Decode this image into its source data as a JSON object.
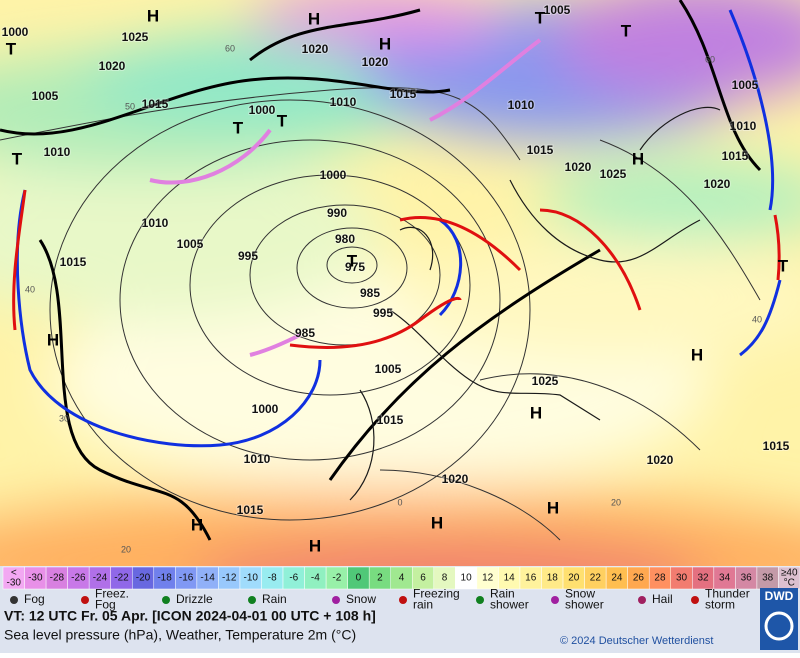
{
  "map": {
    "pressure_labels": [
      "1025",
      "1020",
      "1000",
      "1005",
      "1010",
      "1015",
      "1010",
      "1005",
      "995",
      "1015",
      "990",
      "980",
      "975",
      "985",
      "995",
      "985",
      "1000",
      "1010",
      "1015",
      "1020",
      "1020",
      "1015",
      "1010",
      "1000",
      "1000",
      "1005",
      "1015",
      "1020",
      "1025",
      "1020",
      "1015",
      "1020",
      "1025",
      "1015",
      "1010",
      "1005",
      "1005",
      "1010",
      "1015",
      "1020"
    ],
    "high_labels": [
      "H",
      "H",
      "H",
      "H",
      "H",
      "H",
      "H",
      "H",
      "H",
      "H",
      "H"
    ],
    "low_labels": [
      "T",
      "T",
      "T",
      "T",
      "T",
      "T",
      "T",
      "T"
    ],
    "grid_labels": [
      "60",
      "50",
      "40",
      "30",
      "20",
      "60",
      "40",
      "20",
      "0"
    ]
  },
  "legend": {
    "scale": [
      {
        "label": [
          "<",
          "-30"
        ],
        "color": "#f2a8f2"
      },
      {
        "label": [
          "-30"
        ],
        "color": "#e890e8"
      },
      {
        "label": [
          "-28"
        ],
        "color": "#d880e0"
      },
      {
        "label": [
          "-26"
        ],
        "color": "#c878e8"
      },
      {
        "label": [
          "-24"
        ],
        "color": "#b070e8"
      },
      {
        "label": [
          "-22"
        ],
        "color": "#9068e8"
      },
      {
        "label": [
          "-20"
        ],
        "color": "#6868e0"
      },
      {
        "label": [
          "-18"
        ],
        "color": "#7080ec"
      },
      {
        "label": [
          "-16"
        ],
        "color": "#8098f4"
      },
      {
        "label": [
          "-14"
        ],
        "color": "#90b0f8"
      },
      {
        "label": [
          "-12"
        ],
        "color": "#98c8fc"
      },
      {
        "label": [
          "-10"
        ],
        "color": "#a0dcfc"
      },
      {
        "label": [
          "-8"
        ],
        "color": "#98ecf0"
      },
      {
        "label": [
          "-6"
        ],
        "color": "#90f0d8"
      },
      {
        "label": [
          "-4"
        ],
        "color": "#90f0c0"
      },
      {
        "label": [
          "-2"
        ],
        "color": "#98f0a8"
      },
      {
        "label": [
          "0"
        ],
        "color": "#50c878"
      },
      {
        "label": [
          "2"
        ],
        "color": "#78dc80"
      },
      {
        "label": [
          "4"
        ],
        "color": "#a0e890"
      },
      {
        "label": [
          "6"
        ],
        "color": "#c4f0a0"
      },
      {
        "label": [
          "8"
        ],
        "color": "#e4f8c0"
      },
      {
        "label": [
          "10"
        ],
        "color": "#ffffff"
      },
      {
        "label": [
          "12"
        ],
        "color": "#ffffd0"
      },
      {
        "label": [
          "14"
        ],
        "color": "#fffab0"
      },
      {
        "label": [
          "16"
        ],
        "color": "#fff29c"
      },
      {
        "label": [
          "18"
        ],
        "color": "#ffea88"
      },
      {
        "label": [
          "20"
        ],
        "color": "#ffe070"
      },
      {
        "label": [
          "22"
        ],
        "color": "#ffd060"
      },
      {
        "label": [
          "24"
        ],
        "color": "#ffbe50"
      },
      {
        "label": [
          "26"
        ],
        "color": "#ffa850"
      },
      {
        "label": [
          "28"
        ],
        "color": "#ff9060"
      },
      {
        "label": [
          "30"
        ],
        "color": "#f27c70"
      },
      {
        "label": [
          "32"
        ],
        "color": "#e47080"
      },
      {
        "label": [
          "34"
        ],
        "color": "#e07894"
      },
      {
        "label": [
          "36"
        ],
        "color": "#d488a4"
      },
      {
        "label": [
          "38"
        ],
        "color": "#c49aa8"
      },
      {
        "label": [
          "≥40",
          "°C"
        ],
        "color": "#dcc0d0"
      }
    ],
    "symbols": [
      [
        "Fog"
      ],
      [
        "Freez.",
        "Fog"
      ],
      [
        "Drizzle"
      ],
      [
        "Rain"
      ],
      [
        "Snow"
      ],
      [
        "Freezing",
        "rain"
      ],
      [
        "Rain",
        "shower"
      ],
      [
        "Snow",
        "shower"
      ],
      [
        "Hail"
      ],
      [
        "Thunder",
        "storm"
      ]
    ]
  },
  "footer": {
    "valid_time": "VT: 12 UTC Fr.  05 Apr. [ICON 2024-04-01  00 UTC + 108 h]",
    "subtitle": "Sea level pressure (hPa), Weather, Temperature 2m (°C)",
    "copyright": "© 2024 Deutscher Wetterdienst",
    "logo": "DWD"
  }
}
